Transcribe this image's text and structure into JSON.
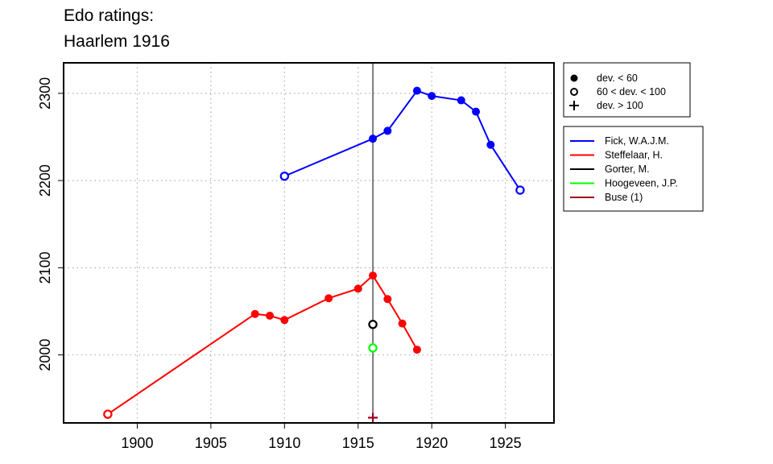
{
  "chart_data": {
    "type": "line",
    "title": [
      "Edo ratings:",
      "Haarlem 1916"
    ],
    "xlabel": "",
    "ylabel": "",
    "xlim": [
      1895,
      1928.3
    ],
    "ylim": [
      1922,
      2335
    ],
    "grid": true,
    "x_ticks": [
      1900,
      1905,
      1910,
      1915,
      1920,
      1925
    ],
    "y_ticks": [
      2000,
      2100,
      2200,
      2300
    ],
    "vline": 1916,
    "marker_legend": {
      "position": "top-right",
      "entries": [
        {
          "marker": "filled-circle",
          "label": "dev. < 60"
        },
        {
          "marker": "open-circle",
          "label": "60 < dev. < 100"
        },
        {
          "marker": "plus",
          "label": "dev. > 100"
        }
      ]
    },
    "series": [
      {
        "name": "Fick, W.A.J.M.",
        "color": "#0000ff",
        "points": [
          {
            "x": 1910,
            "y": 2205,
            "marker": "open"
          },
          {
            "x": 1916,
            "y": 2248,
            "marker": "filled"
          },
          {
            "x": 1917,
            "y": 2257,
            "marker": "filled"
          },
          {
            "x": 1919,
            "y": 2303,
            "marker": "filled"
          },
          {
            "x": 1920,
            "y": 2297,
            "marker": "filled"
          },
          {
            "x": 1922,
            "y": 2292,
            "marker": "filled"
          },
          {
            "x": 1923,
            "y": 2279,
            "marker": "filled"
          },
          {
            "x": 1924,
            "y": 2241,
            "marker": "filled"
          },
          {
            "x": 1926,
            "y": 2189,
            "marker": "open"
          }
        ]
      },
      {
        "name": "Steffelaar, H.",
        "color": "#ff0000",
        "points": [
          {
            "x": 1898,
            "y": 1932,
            "marker": "open"
          },
          {
            "x": 1908,
            "y": 2047,
            "marker": "filled"
          },
          {
            "x": 1909,
            "y": 2045,
            "marker": "filled"
          },
          {
            "x": 1910,
            "y": 2040,
            "marker": "filled"
          },
          {
            "x": 1913,
            "y": 2065,
            "marker": "filled"
          },
          {
            "x": 1915,
            "y": 2076,
            "marker": "filled"
          },
          {
            "x": 1916,
            "y": 2091,
            "marker": "filled"
          },
          {
            "x": 1917,
            "y": 2064,
            "marker": "filled"
          },
          {
            "x": 1918,
            "y": 2036,
            "marker": "filled"
          },
          {
            "x": 1919,
            "y": 2006,
            "marker": "filled"
          }
        ]
      },
      {
        "name": "Gorter, M.",
        "color": "#000000",
        "points": [
          {
            "x": 1916,
            "y": 2035,
            "marker": "open"
          }
        ]
      },
      {
        "name": "Hoogeveen, J.P.",
        "color": "#00ff00",
        "points": [
          {
            "x": 1916,
            "y": 2008,
            "marker": "open"
          }
        ]
      },
      {
        "name": "Buse (1)",
        "color": "#a0001e",
        "points": [
          {
            "x": 1916,
            "y": 1928,
            "marker": "plus"
          }
        ]
      }
    ]
  }
}
